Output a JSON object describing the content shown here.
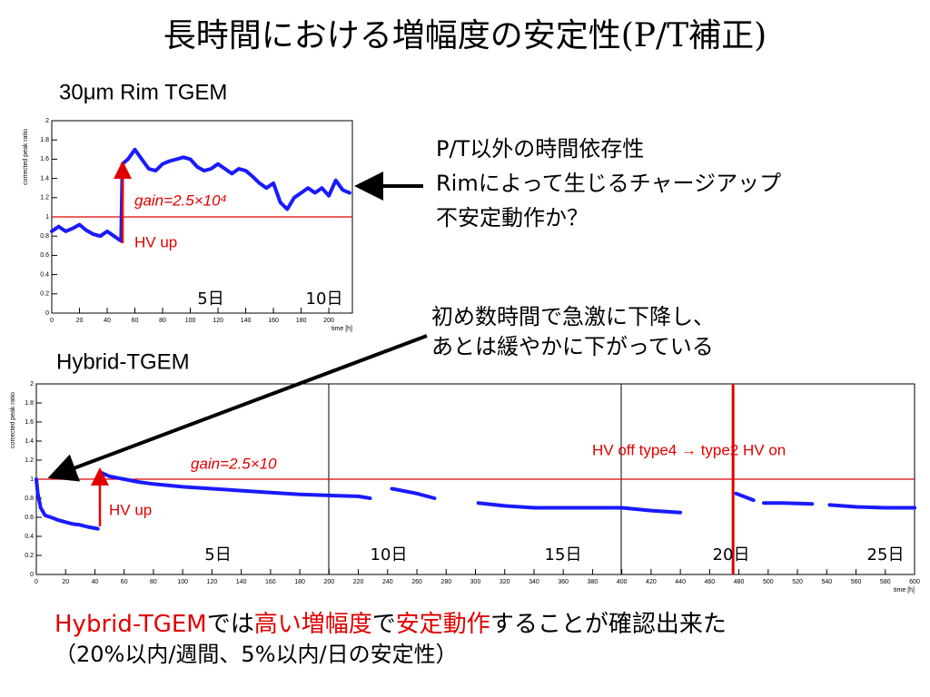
{
  "slide": {
    "title": "長時間における増幅度の安定性(P/T補正)",
    "notes": [
      [
        "P/T以外の時間依存性",
        "Rimによって生じるチャージアップ",
        "不安定動作か？"
      ],
      [
        "初め数時間で急激に下降し、",
        "あとは緩やかに下がっている"
      ]
    ],
    "conclusion": [
      {
        "text": "Hybrid-TGEM",
        "color": "#e00000"
      },
      {
        "text": "では",
        "color": "#000000"
      },
      {
        "text": "高い増幅度",
        "color": "#e00000"
      },
      {
        "text": "で",
        "color": "#000000"
      },
      {
        "text": "安定動作",
        "color": "#e00000"
      },
      {
        "text": "することが確認出来た",
        "color": "#000000"
      }
    ],
    "conclusion_note": "（20%以内/週間、5%以内/日の安定性）"
  },
  "chart_data": [
    {
      "type": "line",
      "title": "30μm Rim TGEM",
      "ylabel": "corrected peak ratio",
      "xlabel": "time [h]",
      "x": [
        0,
        5,
        10,
        15,
        20,
        25,
        30,
        35,
        40,
        45,
        50,
        51,
        55,
        60,
        65,
        70,
        75,
        80,
        85,
        90,
        95,
        100,
        105,
        110,
        115,
        120,
        125,
        130,
        135,
        140,
        145,
        150,
        155,
        160,
        165,
        170,
        175,
        180,
        185,
        190,
        195,
        200,
        205,
        210,
        215
      ],
      "series": [
        {
          "color": "#1a1aff",
          "values": [
            0.85,
            0.9,
            0.85,
            0.88,
            0.92,
            0.86,
            0.82,
            0.8,
            0.85,
            0.8,
            0.75,
            1.55,
            1.6,
            1.7,
            1.6,
            1.5,
            1.48,
            1.55,
            1.58,
            1.6,
            1.62,
            1.6,
            1.52,
            1.48,
            1.5,
            1.55,
            1.5,
            1.45,
            1.5,
            1.48,
            1.42,
            1.35,
            1.3,
            1.35,
            1.15,
            1.08,
            1.2,
            1.25,
            1.3,
            1.25,
            1.3,
            1.22,
            1.38,
            1.28,
            1.25
          ]
        }
      ],
      "xlim": [
        0,
        217
      ],
      "ylim": [
        0,
        2
      ],
      "xticks": [
        0,
        20,
        40,
        60,
        80,
        100,
        120,
        140,
        160,
        180,
        200
      ],
      "yticks": [
        0,
        0.2,
        0.4,
        0.6,
        0.8,
        1,
        1.2,
        1.4,
        1.6,
        1.8,
        2
      ],
      "hline": 1,
      "hline_color": "#e00000",
      "annotations": [
        "gain=2.5×10⁴",
        "HV up"
      ],
      "day_labels": [
        "5日",
        "10日"
      ]
    },
    {
      "type": "line",
      "title": "Hybrid-TGEM",
      "ylabel": "corrected peak ratio",
      "xlabel": "time [h]",
      "x": [
        0,
        1,
        3,
        6,
        10,
        15,
        20,
        25,
        30,
        35,
        42,
        43,
        44,
        50,
        60,
        70,
        80,
        100,
        120,
        140,
        160,
        180,
        200,
        220,
        228,
        235,
        243,
        250,
        260,
        272,
        285,
        302,
        320,
        340,
        360,
        380,
        400,
        420,
        440,
        460,
        478,
        490,
        494,
        497,
        510,
        530,
        536,
        542,
        560,
        580,
        600
      ],
      "series": [
        {
          "color": "#1a1aff",
          "values": [
            1.0,
            0.85,
            0.7,
            0.62,
            0.6,
            0.57,
            0.55,
            0.53,
            0.52,
            0.5,
            0.48,
            null,
            1.07,
            1.03,
            1.0,
            0.97,
            0.95,
            0.92,
            0.9,
            0.88,
            0.86,
            0.84,
            0.83,
            0.82,
            0.8,
            null,
            0.9,
            0.88,
            0.85,
            0.8,
            null,
            0.75,
            0.72,
            0.7,
            0.7,
            0.7,
            0.7,
            0.67,
            0.65,
            null,
            0.85,
            0.78,
            null,
            0.75,
            0.75,
            0.74,
            null,
            0.73,
            0.71,
            0.7,
            0.7
          ]
        }
      ],
      "xlim": [
        0,
        600
      ],
      "ylim": [
        0,
        2
      ],
      "xticks": [
        0,
        20,
        40,
        60,
        80,
        100,
        120,
        140,
        160,
        180,
        200,
        220,
        240,
        260,
        280,
        300,
        320,
        340,
        360,
        380,
        400,
        420,
        440,
        460,
        480,
        500,
        520,
        540,
        560,
        580,
        600
      ],
      "yticks": [
        0,
        0.2,
        0.4,
        0.6,
        0.8,
        1,
        1.2,
        1.4,
        1.6,
        1.8,
        2
      ],
      "hline": 1,
      "hline_color": "#e00000",
      "vline": 476,
      "vline_color": "#e00000",
      "annotations": [
        "gain=2.5×10",
        "HV up",
        "HV off type4 → type2 HV on"
      ],
      "day_labels": [
        "5日",
        "10日",
        "15日",
        "20日",
        "25日"
      ]
    }
  ]
}
